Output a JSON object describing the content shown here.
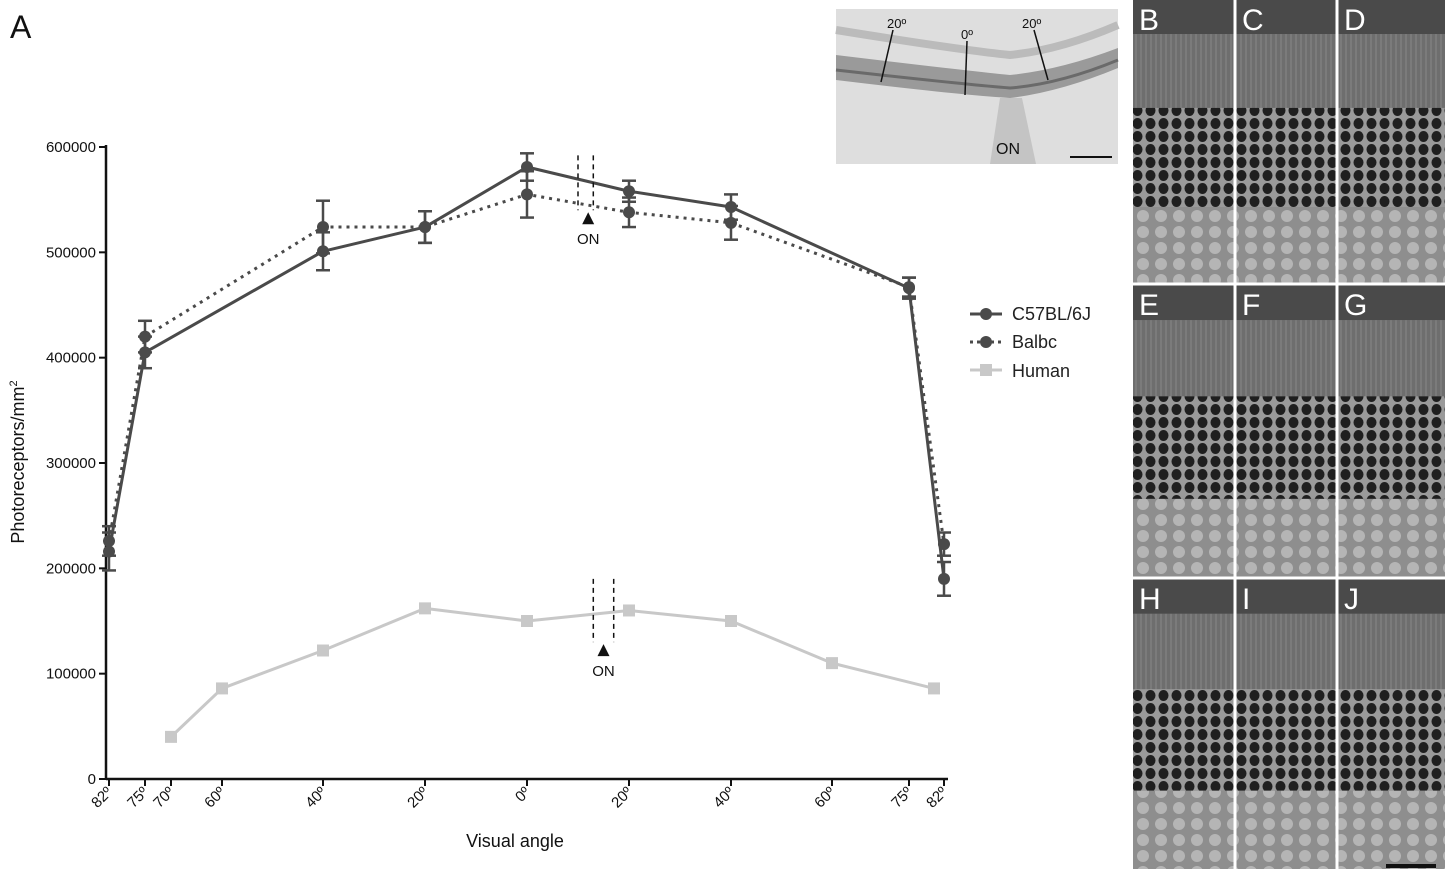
{
  "panel_label": "A",
  "chart_data": {
    "type": "line",
    "xlabel": "Visual angle",
    "ylabel": "Photoreceptors/mm",
    "ylabel_superscript": "2",
    "ylim": [
      0,
      600000
    ],
    "yticks": [
      0,
      100000,
      200000,
      300000,
      400000,
      500000,
      600000
    ],
    "ytick_labels": [
      "0",
      "100000",
      "200000",
      "300000",
      "400000",
      "500000",
      "600000"
    ],
    "xticks": [
      -82,
      -75,
      -70,
      -60,
      -40,
      -20,
      0,
      20,
      40,
      60,
      75,
      82
    ],
    "xtick_labels": [
      "82º",
      "75º",
      "70º",
      "60º",
      "40º",
      "20º",
      "0º",
      "20º",
      "40º",
      "60º",
      "75º",
      "82º"
    ],
    "xlim": [
      -82,
      82
    ],
    "series": [
      {
        "name": "C57BL/6J",
        "style": "solid",
        "marker": "circle",
        "color": "#4a4a4a",
        "x": [
          -82,
          -75,
          -40,
          -20,
          0,
          20,
          40,
          75,
          82
        ],
        "values": [
          216000,
          405000,
          501000,
          524000,
          581000,
          558000,
          543000,
          466000,
          190000
        ],
        "errors": [
          18000,
          15000,
          18000,
          15000,
          13000,
          10000,
          12000,
          10000,
          16000
        ]
      },
      {
        "name": "Balbc",
        "style": "dotted",
        "marker": "circle",
        "color": "#4a4a4a",
        "x": [
          -82,
          -75,
          -40,
          -20,
          0,
          20,
          40,
          75,
          82
        ],
        "values": [
          226000,
          420000,
          524000,
          524000,
          555000,
          538000,
          528000,
          467000,
          223000
        ],
        "errors": [
          14000,
          15000,
          25000,
          15000,
          22000,
          14000,
          16000,
          9000,
          11000
        ]
      },
      {
        "name": "Human",
        "style": "solid",
        "marker": "square",
        "color": "#c8c8c8",
        "x": [
          -70,
          -60,
          -40,
          -20,
          0,
          20,
          40,
          60,
          80
        ],
        "values": [
          40000,
          86000,
          122000,
          162000,
          150000,
          160000,
          150000,
          110000,
          86000
        ]
      }
    ],
    "annotations": [
      {
        "text": "ON",
        "at_x": 12,
        "lines_between": [
          10,
          13
        ],
        "group": "mouse"
      },
      {
        "text": "ON",
        "at_x": 15,
        "lines_between": [
          13,
          17
        ],
        "group": "human"
      }
    ],
    "legend_position": "right"
  },
  "inset": {
    "labels": [
      "20º",
      "0º",
      "20º"
    ],
    "on_label": "ON"
  },
  "micrographs": {
    "labels": [
      "B",
      "C",
      "D",
      "E",
      "F",
      "G",
      "H",
      "I",
      "J"
    ]
  }
}
